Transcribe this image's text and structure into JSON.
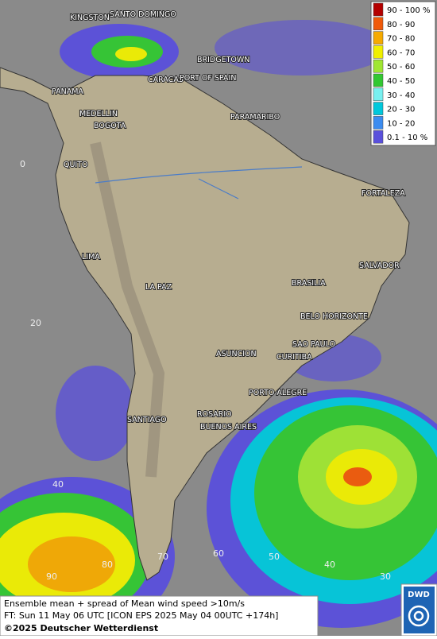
{
  "legend": {
    "entries": [
      {
        "label": "90 - 100 %",
        "color": "#b40000"
      },
      {
        "label": "80 - 90",
        "color": "#f05a0a"
      },
      {
        "label": "70 - 80",
        "color": "#f5aa00"
      },
      {
        "label": "60 - 70",
        "color": "#f0f000"
      },
      {
        "label": "50 - 60",
        "color": "#a0e632"
      },
      {
        "label": "40 - 50",
        "color": "#32c832"
      },
      {
        "label": "30 - 40",
        "color": "#78f0f0"
      },
      {
        "label": "20 - 30",
        "color": "#00c8dc"
      },
      {
        "label": "10 - 20",
        "color": "#3c8cf0"
      },
      {
        "label": "0.1 - 10 %",
        "color": "#5a50dc"
      }
    ]
  },
  "map": {
    "cities": [
      "KINGSTON",
      "SANTO DOMINGO",
      "BRIDGETOWN",
      "CARACAS",
      "PORT OF SPAIN",
      "PANAMA",
      "MEDELLIN",
      "BOGOTA",
      "PARAMARIBO",
      "QUITO",
      "FORTALEZA",
      "LIMA",
      "SALVADOR",
      "BRASILIA",
      "LA PAZ",
      "BELO HORIZONTE",
      "SAO PAULO",
      "ASUNCION",
      "CURITIBA",
      "PORTO ALEGRE",
      "ROSARIO",
      "SANTIAGO",
      "BUENOS AIRES"
    ],
    "grid_labels": [
      "0",
      "20",
      "40",
      "90",
      "80",
      "70",
      "60",
      "50",
      "40",
      "30"
    ]
  },
  "footer": {
    "line1": "Ensemble mean + spread of Mean wind speed >10m/s",
    "line2": "FT: Sun 11 May 06 UTC [ICON EPS 2025 May 04 00UTC +174h]",
    "copyright": "©2025 Deutscher Wetterdienst"
  },
  "logo": "DWD"
}
